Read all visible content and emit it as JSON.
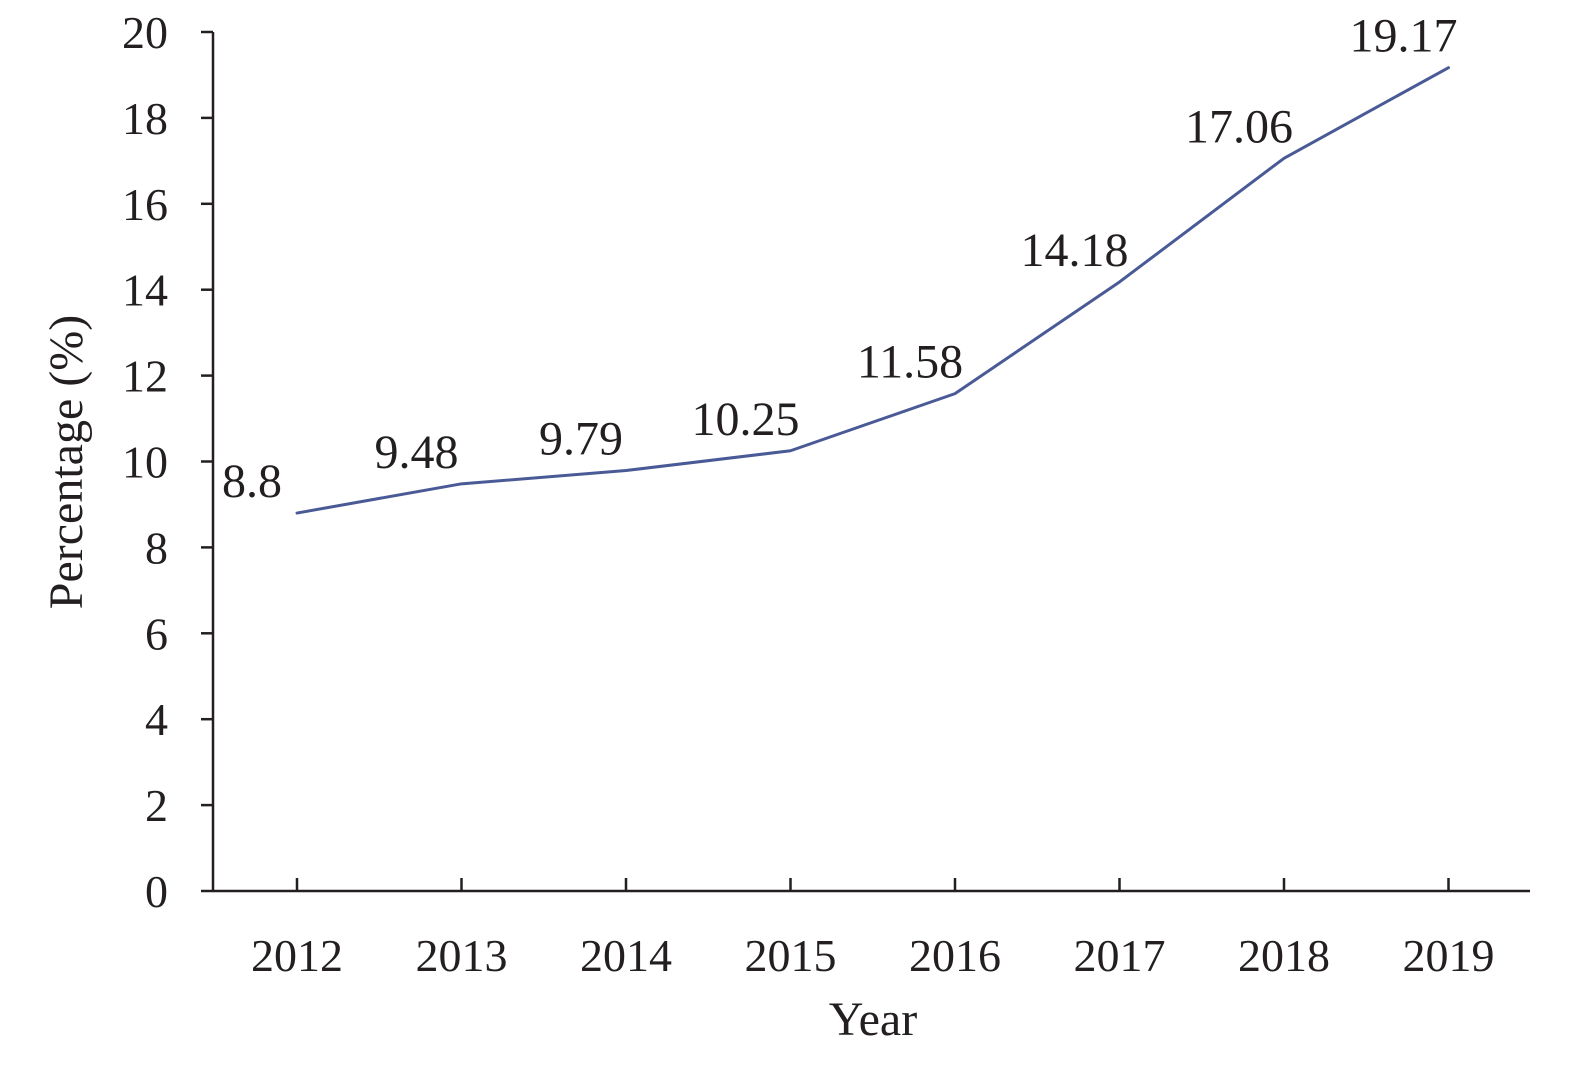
{
  "chart_data": {
    "type": "line",
    "title": "",
    "xlabel": "Year",
    "ylabel": "Percentage (%)",
    "categories": [
      "2012",
      "2013",
      "2014",
      "2015",
      "2016",
      "2017",
      "2018",
      "2019"
    ],
    "series": [
      {
        "values": [
          8.8,
          9.48,
          9.79,
          10.25,
          11.58,
          14.18,
          17.06,
          19.17
        ],
        "data_labels": [
          "8.8",
          "9.48",
          "9.79",
          "10.25",
          "11.58",
          "14.18",
          "17.06",
          "19.17"
        ],
        "color": "#4a5a96"
      }
    ],
    "yticks": [
      "0",
      "2",
      "4",
      "6",
      "8",
      "10",
      "12",
      "14",
      "16",
      "18",
      "20"
    ],
    "ylim": [
      0,
      20
    ],
    "grid": false,
    "legend": "none"
  }
}
